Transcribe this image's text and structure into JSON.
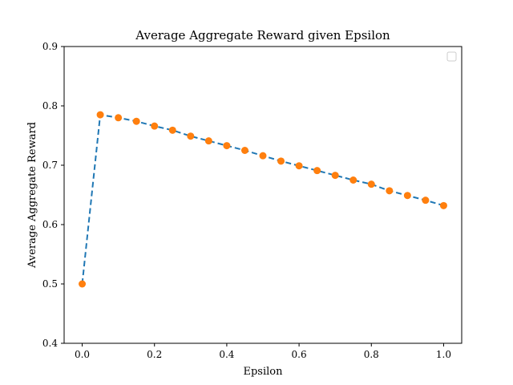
{
  "chart_data": {
    "type": "line",
    "title": "Average Aggregate Reward given Epsilon",
    "xlabel": "Epsilon",
    "ylabel": "Average Aggregate Reward",
    "xlim": [
      -0.05,
      1.05
    ],
    "ylim": [
      0.4,
      0.9
    ],
    "xticks": [
      0.0,
      0.2,
      0.4,
      0.6,
      0.8,
      1.0
    ],
    "xtick_labels": [
      "0.0",
      "0.2",
      "0.4",
      "0.6",
      "0.8",
      "1.0"
    ],
    "yticks": [
      0.4,
      0.5,
      0.6,
      0.7,
      0.8,
      0.9
    ],
    "ytick_labels": [
      "0.4",
      "0.5",
      "0.6",
      "0.7",
      "0.8",
      "0.9"
    ],
    "grid": false,
    "legend": "top-right",
    "series": [
      {
        "line_color": "#1f77b4",
        "line_style": "dashed",
        "marker_color": "#ff7f0e",
        "x": [
          0.0,
          0.05,
          0.1,
          0.15,
          0.2,
          0.25,
          0.3,
          0.35,
          0.4,
          0.45,
          0.5,
          0.55,
          0.6,
          0.65,
          0.7,
          0.75,
          0.8,
          0.85,
          0.9,
          0.95,
          1.0
        ],
        "y": [
          0.5,
          0.785,
          0.78,
          0.774,
          0.766,
          0.759,
          0.749,
          0.741,
          0.733,
          0.725,
          0.716,
          0.707,
          0.699,
          0.691,
          0.683,
          0.675,
          0.668,
          0.657,
          0.649,
          0.641,
          0.632
        ]
      }
    ]
  }
}
